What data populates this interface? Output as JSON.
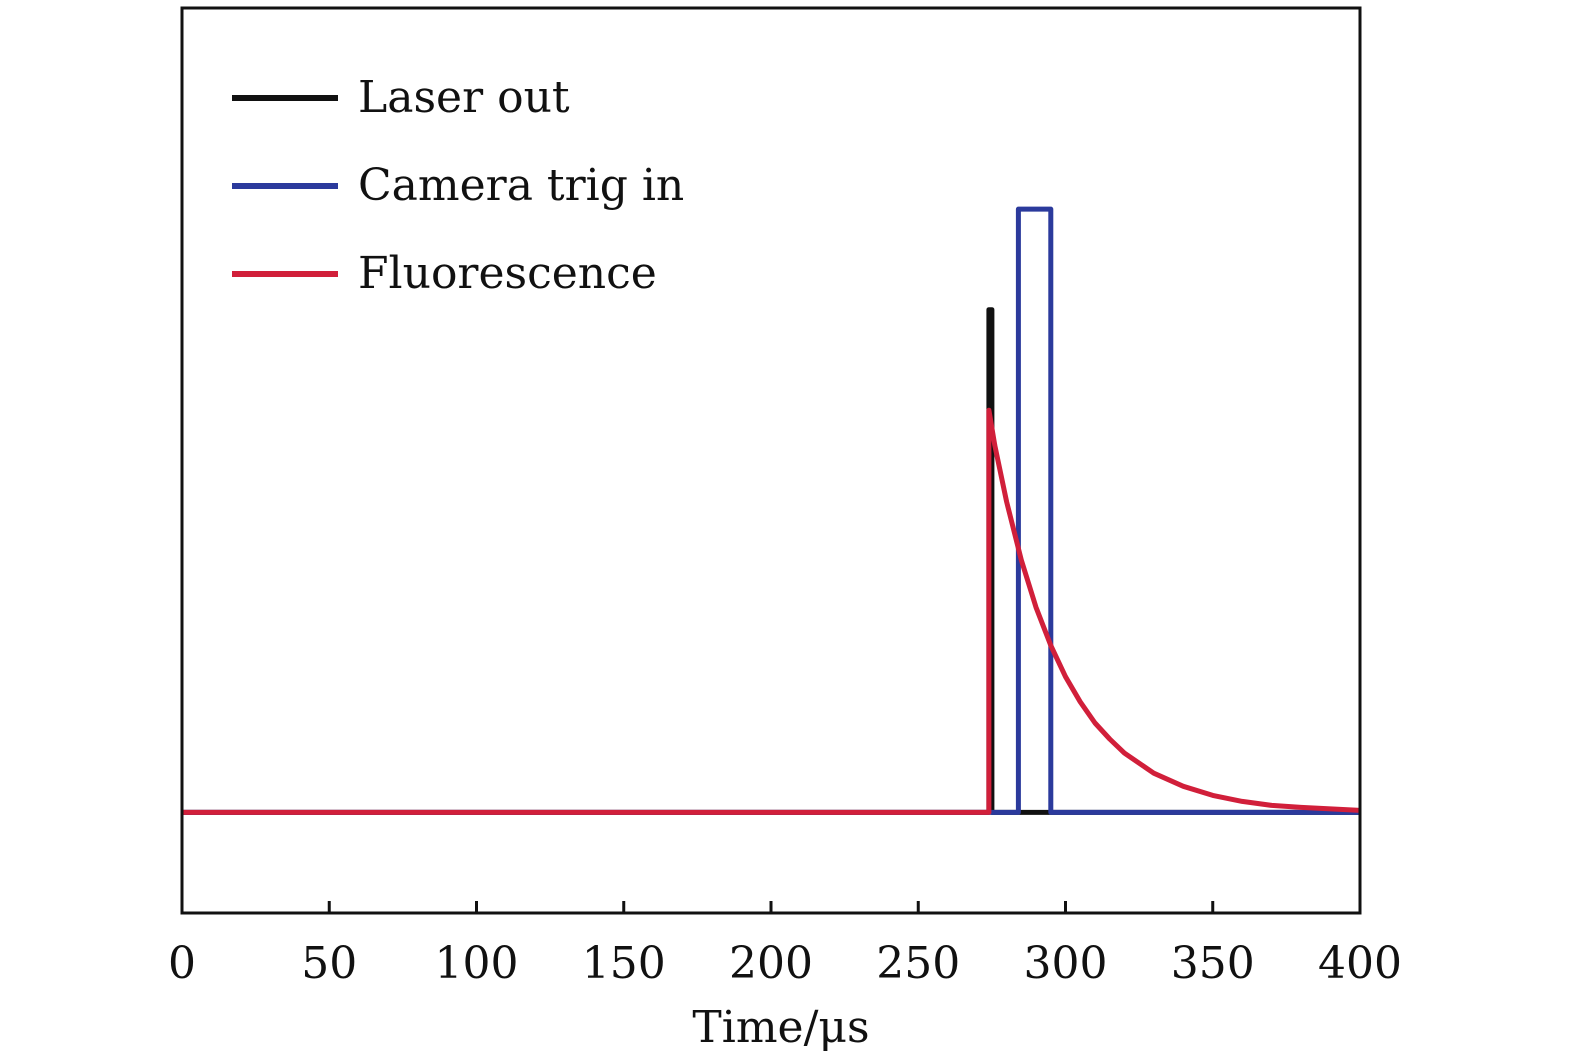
{
  "chart_data": {
    "type": "line",
    "title": "",
    "xlabel": "Time/μs",
    "ylabel": "",
    "xlim": [
      0,
      400
    ],
    "ylim": [
      -1,
      8
    ],
    "x_ticks": [
      "0",
      "50",
      "100",
      "150",
      "200",
      "250",
      "300",
      "350",
      "400"
    ],
    "grid": false,
    "legend_position": "top-left",
    "series": [
      {
        "name": "Laser out",
        "color": "#111111",
        "x": [
          0,
          274,
          274,
          275,
          275,
          400
        ],
        "y": [
          0,
          0,
          5,
          5,
          0,
          0
        ]
      },
      {
        "name": "Camera trig in",
        "color": "#2b3a9c",
        "x": [
          0,
          284,
          284,
          295,
          295,
          400
        ],
        "y": [
          0,
          0,
          6,
          6,
          0,
          0
        ]
      },
      {
        "name": "Fluorescence",
        "color": "#d11f3a",
        "x": [
          0,
          274,
          274,
          276,
          280,
          285,
          290,
          295,
          300,
          305,
          310,
          315,
          320,
          330,
          340,
          350,
          360,
          370,
          380,
          400
        ],
        "y": [
          0,
          0,
          4.0,
          3.65,
          3.09,
          2.51,
          2.04,
          1.66,
          1.35,
          1.1,
          0.89,
          0.73,
          0.59,
          0.39,
          0.26,
          0.17,
          0.11,
          0.07,
          0.05,
          0.02
        ]
      }
    ]
  }
}
